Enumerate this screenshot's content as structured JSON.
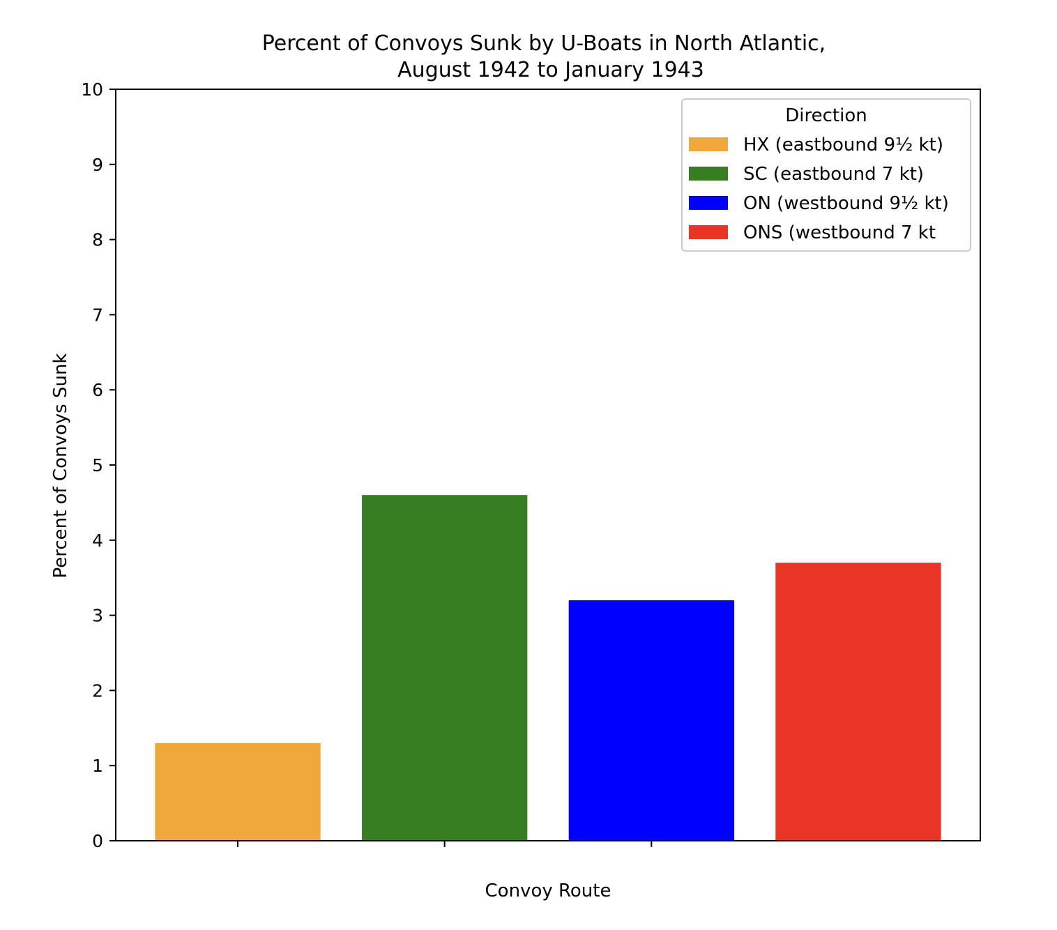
{
  "chart_data": {
    "type": "bar",
    "title_lines": [
      "Percent of Convoys Sunk by U-Boats in North Atlantic,",
      "August 1942 to January 1943"
    ],
    "xlabel": "Convoy Route",
    "ylabel": "Percent of Convoys Sunk",
    "ylim": [
      0,
      10
    ],
    "yticks": [
      "0",
      "1",
      "2",
      "3",
      "4",
      "5",
      "6",
      "7",
      "8",
      "9",
      "10"
    ],
    "grid": false,
    "legend": {
      "title": "Direction",
      "placement": "top-right"
    },
    "series": [
      {
        "name": "HX (eastbound 9½ kt)",
        "value": 1.3,
        "color": "#f0a83c"
      },
      {
        "name": "SC (eastbound 7 kt)",
        "value": 4.6,
        "color": "#377e22"
      },
      {
        "name": "ON (westbound 9½ kt)",
        "value": 3.2,
        "color": "#0000ff"
      },
      {
        "name": "ONS (westbound 7 kt",
        "value": 3.7,
        "color": "#e93525"
      }
    ]
  }
}
